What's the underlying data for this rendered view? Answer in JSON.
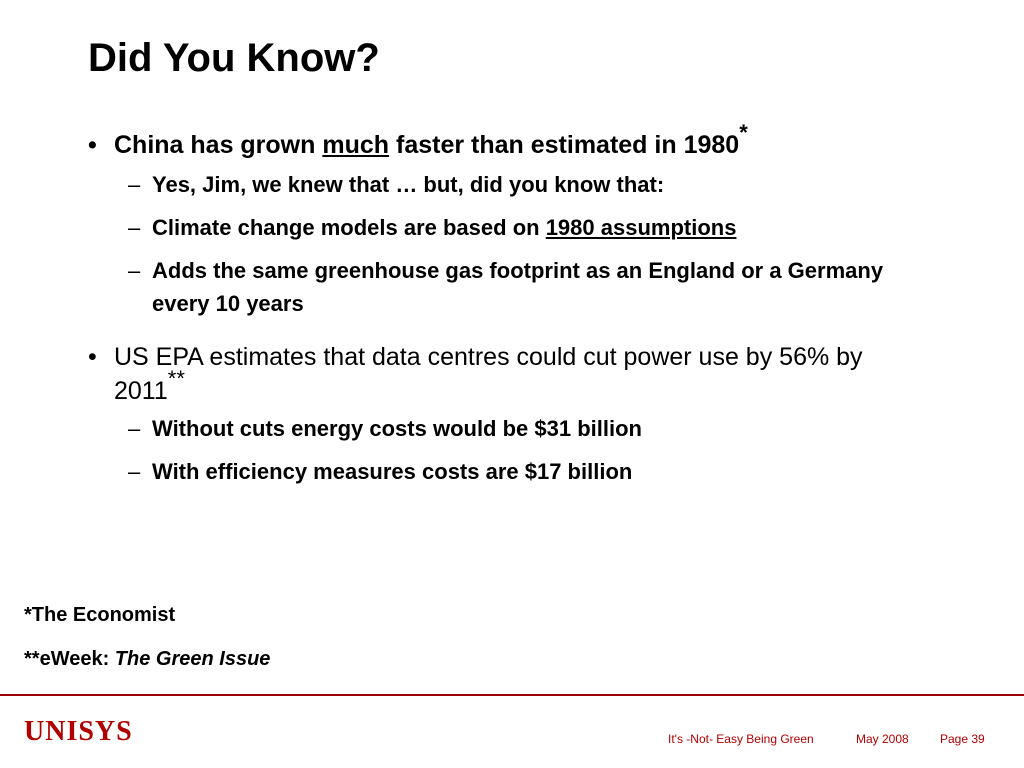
{
  "slide": {
    "title": "Did You Know?",
    "bullet1": {
      "before": "China has grown ",
      "emphasis": "much",
      "after": " faster than estimated in 1980",
      "footnote_mark": "*",
      "subs": [
        "Yes, Jim, we knew that … but, did you know that:",
        {
          "before": "Climate change models are based on ",
          "emphasis": "1980 assumptions"
        },
        "Adds the same greenhouse gas footprint as an England or a Germany every 10 years"
      ]
    },
    "bullet2": {
      "text": "US EPA estimates that data centres could cut power use by 56% by 2011",
      "footnote_mark": "**",
      "subs": [
        "Without cuts energy costs would be $31 billion",
        "With efficiency measures costs are $17 billion"
      ]
    },
    "bullet_glyph": "•",
    "dash_glyph": "–",
    "footnotes": {
      "first": "*The Economist",
      "second_prefix": "**eWeek: ",
      "second_italic": "The Green Issue"
    }
  },
  "footer": {
    "logo": "UNISYS",
    "presentation_title": "It's -Not- Easy Being Green",
    "date": "May 2008",
    "page": "Page 39"
  },
  "colors": {
    "brand": "#b00000",
    "rule": "#9b0000"
  }
}
